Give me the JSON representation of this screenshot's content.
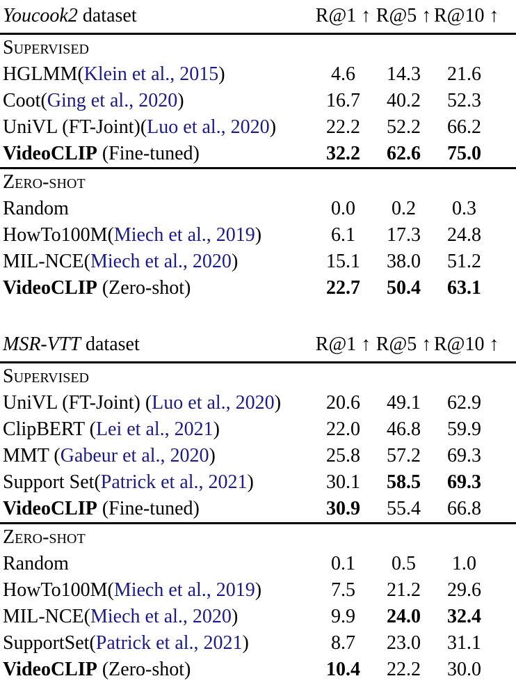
{
  "page": {
    "background_color": "#ffffff",
    "text_color": "#000000",
    "citation_color": "#1a1a8c"
  },
  "tables": [
    {
      "id": "youcook2",
      "title_em": "Youcook2",
      "title_rest": " dataset",
      "columns": [
        "R@1 ↑",
        "R@5 ↑",
        "R@10 ↑"
      ],
      "sections": [
        {
          "header": "Supervised",
          "rows": [
            {
              "name": "HGLMM",
              "name_bold": false,
              "rest": "",
              "open": "(",
              "cite": "Klein et al., 2015",
              "close": ")",
              "values": [
                "4.6",
                "14.3",
                "21.6"
              ],
              "bold": [
                false,
                false,
                false
              ]
            },
            {
              "name": "Coot",
              "name_bold": false,
              "rest": "",
              "open": "(",
              "cite": "Ging et al., 2020",
              "close": ")",
              "values": [
                "16.7",
                "40.2",
                "52.3"
              ],
              "bold": [
                false,
                false,
                false
              ]
            },
            {
              "name": "UniVL (FT-Joint)",
              "name_bold": false,
              "rest": "",
              "open": "(",
              "cite": "Luo et al., 2020",
              "close": ")",
              "values": [
                "22.2",
                "52.2",
                "66.2"
              ],
              "bold": [
                false,
                false,
                false
              ]
            },
            {
              "name": "VideoCLIP",
              "name_bold": true,
              "rest": " (Fine-tuned)",
              "open": "",
              "cite": "",
              "close": "",
              "values": [
                "32.2",
                "62.6",
                "75.0"
              ],
              "bold": [
                true,
                true,
                true
              ]
            }
          ]
        },
        {
          "header": "Zero-shot",
          "rows": [
            {
              "name": "Random",
              "name_bold": false,
              "rest": "",
              "open": "",
              "cite": "",
              "close": "",
              "values": [
                "0.0",
                "0.2",
                "0.3"
              ],
              "bold": [
                false,
                false,
                false
              ]
            },
            {
              "name": "HowTo100M",
              "name_bold": false,
              "rest": "",
              "open": "(",
              "cite": "Miech et al., 2019",
              "close": ")",
              "values": [
                "6.1",
                "17.3",
                "24.8"
              ],
              "bold": [
                false,
                false,
                false
              ]
            },
            {
              "name": "MIL-NCE",
              "name_bold": false,
              "rest": "",
              "open": "(",
              "cite": "Miech et al., 2020",
              "close": ")",
              "values": [
                "15.1",
                "38.0",
                "51.2"
              ],
              "bold": [
                false,
                false,
                false
              ]
            },
            {
              "name": "VideoCLIP",
              "name_bold": true,
              "rest": " (Zero-shot)",
              "open": "",
              "cite": "",
              "close": "",
              "values": [
                "22.7",
                "50.4",
                "63.1"
              ],
              "bold": [
                true,
                true,
                true
              ]
            }
          ]
        }
      ]
    },
    {
      "id": "msrvtt",
      "title_em": "MSR-VTT",
      "title_rest": " dataset",
      "columns": [
        "R@1 ↑",
        "R@5 ↑",
        "R@10 ↑"
      ],
      "sections": [
        {
          "header": "Supervised",
          "rows": [
            {
              "name": "UniVL (FT-Joint)",
              "name_bold": false,
              "rest": " ",
              "open": "(",
              "cite": "Luo et al., 2020",
              "close": ")",
              "values": [
                "20.6",
                "49.1",
                "62.9"
              ],
              "bold": [
                false,
                false,
                false
              ]
            },
            {
              "name": "ClipBERT",
              "name_bold": false,
              "rest": " ",
              "open": "(",
              "cite": "Lei et al., 2021",
              "close": ")",
              "values": [
                "22.0",
                "46.8",
                "59.9"
              ],
              "bold": [
                false,
                false,
                false
              ]
            },
            {
              "name": "MMT",
              "name_bold": false,
              "rest": " ",
              "open": "(",
              "cite": "Gabeur et al., 2020",
              "close": ")",
              "values": [
                "25.8",
                "57.2",
                "69.3"
              ],
              "bold": [
                false,
                false,
                false
              ]
            },
            {
              "name": "Support Set",
              "name_bold": false,
              "rest": "",
              "open": "(",
              "cite": "Patrick et al., 2021",
              "close": ")",
              "values": [
                "30.1",
                "58.5",
                "69.3"
              ],
              "bold": [
                false,
                true,
                true
              ]
            },
            {
              "name": "VideoCLIP",
              "name_bold": true,
              "rest": " (Fine-tuned)",
              "open": "",
              "cite": "",
              "close": "",
              "values": [
                "30.9",
                "55.4",
                "66.8"
              ],
              "bold": [
                true,
                false,
                false
              ]
            }
          ]
        },
        {
          "header": "Zero-shot",
          "rows": [
            {
              "name": "Random",
              "name_bold": false,
              "rest": "",
              "open": "",
              "cite": "",
              "close": "",
              "values": [
                "0.1",
                "0.5",
                "1.0"
              ],
              "bold": [
                false,
                false,
                false
              ]
            },
            {
              "name": "HowTo100M",
              "name_bold": false,
              "rest": "",
              "open": "(",
              "cite": "Miech et al., 2019",
              "close": ")",
              "values": [
                "7.5",
                "21.2",
                "29.6"
              ],
              "bold": [
                false,
                false,
                false
              ]
            },
            {
              "name": "MIL-NCE",
              "name_bold": false,
              "rest": "",
              "open": "(",
              "cite": "Miech et al., 2020",
              "close": ")",
              "values": [
                "9.9",
                "24.0",
                "32.4"
              ],
              "bold": [
                false,
                true,
                true
              ]
            },
            {
              "name": "SupportSet",
              "name_bold": false,
              "rest": "",
              "open": "(",
              "cite": "Patrick et al., 2021",
              "close": ")",
              "values": [
                "8.7",
                "23.0",
                "31.1"
              ],
              "bold": [
                false,
                false,
                false
              ]
            },
            {
              "name": "VideoCLIP",
              "name_bold": true,
              "rest": " (Zero-shot)",
              "open": "",
              "cite": "",
              "close": "",
              "values": [
                "10.4",
                "22.2",
                "30.0"
              ],
              "bold": [
                true,
                false,
                false
              ]
            }
          ]
        }
      ]
    }
  ]
}
